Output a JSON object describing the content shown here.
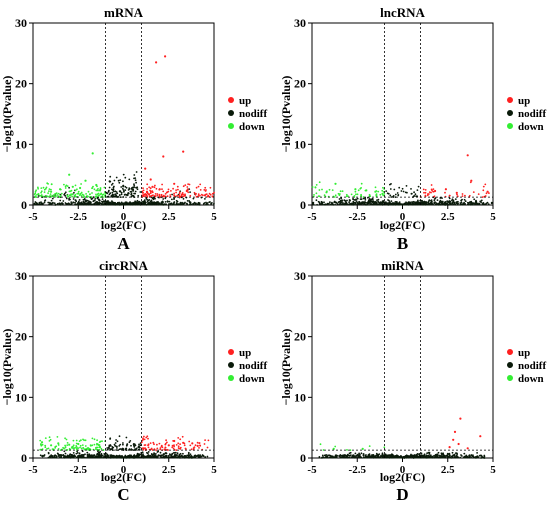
{
  "figure": {
    "xlabel": "log2(FC)",
    "ylabel": "−log10(Pvalue)",
    "legend": [
      {
        "label": "up",
        "color": "#ff2020"
      },
      {
        "label": "nodiff",
        "color": "#0a1a0a"
      },
      {
        "label": "down",
        "color": "#33ee33"
      }
    ]
  },
  "chart_data": [
    {
      "type": "scatter",
      "panel_letter": "A",
      "title": "mRNA",
      "xlabel": "log2(FC)",
      "ylabel": "−log10(Pvalue)",
      "xlim": [
        -5,
        5
      ],
      "ylim": [
        0,
        30
      ],
      "xticks": [
        "-5",
        "-2.5",
        "0",
        "2.5",
        "5"
      ],
      "yticks": [
        "0",
        "10",
        "20",
        "30"
      ],
      "fc_threshold": 1,
      "p_threshold": 1.3,
      "legend": [
        "up",
        "nodiff",
        "down"
      ],
      "legend_position": "right",
      "series": [
        {
          "name": "up",
          "color": "#ff2020",
          "points": [
            [
              1.8,
              23.5
            ],
            [
              2.3,
              24.5
            ],
            [
              2.2,
              8
            ],
            [
              3.3,
              8.8
            ],
            [
              1.2,
              6
            ],
            [
              1.5,
              4.2
            ],
            [
              2.8,
              3.5
            ],
            [
              1.6,
              3
            ],
            [
              2,
              2.6
            ],
            [
              3.5,
              2.3
            ],
            [
              1.3,
              2.2
            ],
            [
              4.5,
              1.6
            ]
          ]
        },
        {
          "name": "down",
          "color": "#33ee33",
          "points": [
            [
              -1.7,
              8.5
            ],
            [
              -3,
              5
            ],
            [
              -2.1,
              4
            ],
            [
              -1.5,
              3.3
            ],
            [
              -2.8,
              3
            ],
            [
              -3.5,
              2.6
            ],
            [
              -4,
              2.2
            ],
            [
              -1.3,
              2.4
            ],
            [
              -2.4,
              2.8
            ],
            [
              -4.7,
              1.8
            ]
          ]
        }
      ],
      "cloud": {
        "up_density": 1,
        "down_density": 1,
        "nodiff_height": 3.2,
        "spread": 5
      }
    },
    {
      "type": "scatter",
      "panel_letter": "B",
      "title": "lncRNA",
      "xlabel": "log2(FC)",
      "ylabel": "−log10(Pvalue)",
      "xlim": [
        -5,
        5
      ],
      "ylim": [
        0,
        30
      ],
      "xticks": [
        "-5",
        "-2.5",
        "0",
        "2.5",
        "5"
      ],
      "yticks": [
        "0",
        "10",
        "20",
        "30"
      ],
      "fc_threshold": 1,
      "p_threshold": 1.3,
      "legend": [
        "up",
        "nodiff",
        "down"
      ],
      "legend_position": "right",
      "series": [
        {
          "name": "up",
          "color": "#ff2020",
          "points": [
            [
              3.6,
              8.2
            ],
            [
              3.8,
              4
            ],
            [
              2.4,
              2.6
            ],
            [
              4.7,
              2.2
            ],
            [
              1.8,
              2.3
            ],
            [
              3,
              2
            ]
          ]
        },
        {
          "name": "down",
          "color": "#33ee33",
          "points": [
            [
              -3.7,
              3.5
            ],
            [
              -2.6,
              2.6
            ],
            [
              -1.5,
              2.2
            ],
            [
              -4.2,
              2.1
            ],
            [
              -2,
              2.4
            ]
          ]
        }
      ],
      "cloud": {
        "up_density": 0.3,
        "down_density": 0.45,
        "nodiff_height": 1.4,
        "spread": 5
      }
    },
    {
      "type": "scatter",
      "panel_letter": "C",
      "title": "circRNA",
      "xlabel": "log2(FC)",
      "ylabel": "−log10(Pvalue)",
      "xlim": [
        -5,
        5
      ],
      "ylim": [
        0,
        30
      ],
      "xticks": [
        "-5",
        "-2.5",
        "0",
        "2.5",
        "5"
      ],
      "yticks": [
        "0",
        "10",
        "20",
        "30"
      ],
      "fc_threshold": 1,
      "p_threshold": 1.3,
      "legend": [
        "up",
        "nodiff",
        "down"
      ],
      "legend_position": "right",
      "series": [
        {
          "name": "up",
          "color": "#ff2020",
          "points": [
            [
              2.8,
              2.8
            ],
            [
              3.3,
              2.5
            ],
            [
              3.8,
              2.4
            ],
            [
              2.5,
              2.1
            ],
            [
              4.1,
              2
            ]
          ]
        },
        {
          "name": "down",
          "color": "#33ee33",
          "points": [
            [
              -4.5,
              2.6
            ],
            [
              -3.6,
              2.4
            ],
            [
              -2.5,
              2.3
            ],
            [
              -3,
              2.2
            ],
            [
              -4,
              2.1
            ]
          ]
        }
      ],
      "cloud": {
        "up_density": 0.7,
        "down_density": 0.8,
        "nodiff_height": 1.2,
        "spread": 4.7
      }
    },
    {
      "type": "scatter",
      "panel_letter": "D",
      "title": "miRNA",
      "xlabel": "log2(FC)",
      "ylabel": "−log10(Pvalue)",
      "xlim": [
        -5,
        5
      ],
      "ylim": [
        0,
        30
      ],
      "xticks": [
        "-5",
        "-2.5",
        "0",
        "2.5",
        "5"
      ],
      "yticks": [
        "0",
        "10",
        "20",
        "30"
      ],
      "fc_threshold": 1,
      "p_threshold": 1.3,
      "legend": [
        "up",
        "nodiff",
        "down"
      ],
      "legend_position": "right",
      "series": [
        {
          "name": "up",
          "color": "#ff2020",
          "points": [
            [
              3.2,
              6.5
            ],
            [
              2.9,
              4.3
            ],
            [
              4.3,
              3.6
            ],
            [
              2.8,
              3
            ],
            [
              3.1,
              2.3
            ],
            [
              2.6,
              1.8
            ],
            [
              3.6,
              1.6
            ]
          ]
        },
        {
          "name": "down",
          "color": "#33ee33",
          "points": [
            [
              -3.8,
              1.5
            ],
            [
              -2.2,
              1.5
            ]
          ]
        }
      ],
      "cloud": {
        "up_density": 0,
        "down_density": 0.05,
        "nodiff_height": 0.9,
        "spread": 4.7
      }
    }
  ]
}
